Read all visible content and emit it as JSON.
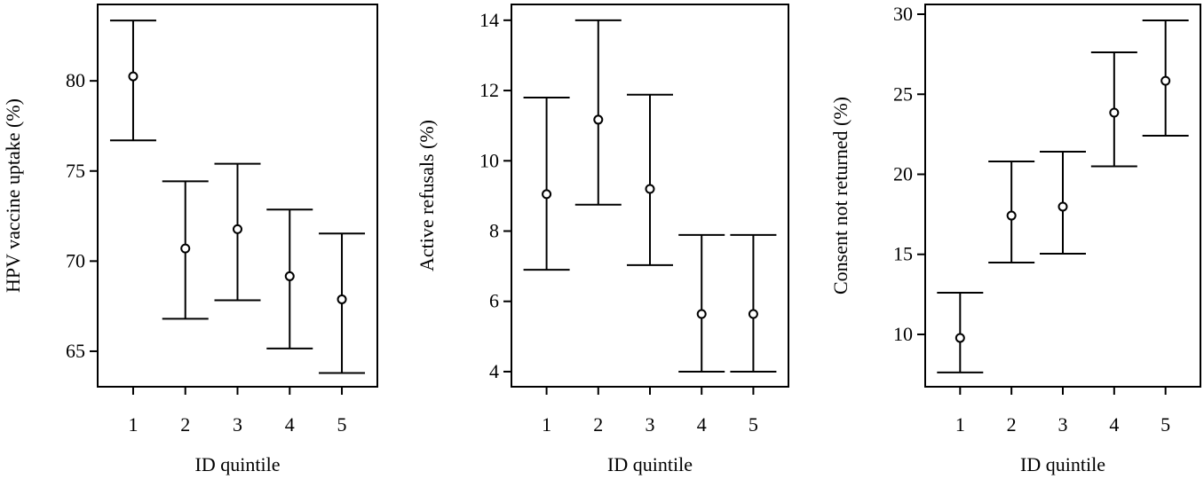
{
  "chart_data": [
    {
      "type": "errorbar",
      "xlabel": "ID quintile",
      "ylabel": "HPV vaccine uptake (%)",
      "x": [
        1,
        2,
        3,
        4,
        5
      ],
      "values": [
        80.25,
        70.7,
        71.77,
        69.16,
        67.88
      ],
      "lower": [
        76.7,
        66.8,
        67.83,
        65.15,
        63.79
      ],
      "upper": [
        83.35,
        74.43,
        75.4,
        72.86,
        71.53
      ],
      "xlim": [
        0.32,
        5.68
      ],
      "xticks": [
        1,
        2,
        3,
        4,
        5
      ],
      "ylim": [
        63.03,
        84.24
      ],
      "yticks": [
        65,
        70,
        75,
        80
      ],
      "color": "#000000"
    },
    {
      "type": "errorbar",
      "xlabel": "ID quintile",
      "ylabel": "Active refusals (%)",
      "x": [
        1,
        2,
        3,
        4,
        5
      ],
      "values": [
        9.05,
        11.17,
        9.2,
        5.64,
        5.64
      ],
      "lower": [
        6.9,
        8.75,
        7.03,
        4.0,
        4.0
      ],
      "upper": [
        11.8,
        14.0,
        11.88,
        7.89,
        7.89
      ],
      "xlim": [
        0.32,
        5.68
      ],
      "xticks": [
        1,
        2,
        3,
        4,
        5
      ],
      "ylim": [
        3.57,
        14.45
      ],
      "yticks": [
        4,
        6,
        8,
        10,
        12,
        14
      ],
      "color": "#000000"
    },
    {
      "type": "errorbar",
      "xlabel": "ID quintile",
      "ylabel": "Consent not returned (%)",
      "x": [
        1,
        2,
        3,
        4,
        5
      ],
      "values": [
        9.78,
        17.42,
        17.98,
        23.85,
        25.84
      ],
      "lower": [
        7.62,
        14.49,
        15.04,
        20.5,
        22.41
      ],
      "upper": [
        12.6,
        20.8,
        21.41,
        27.62,
        29.61
      ],
      "xlim": [
        0.32,
        5.68
      ],
      "xticks": [
        1,
        2,
        3,
        4,
        5
      ],
      "ylim": [
        6.73,
        30.61
      ],
      "yticks": [
        10,
        15,
        20,
        25,
        30
      ],
      "color": "#000000"
    }
  ]
}
